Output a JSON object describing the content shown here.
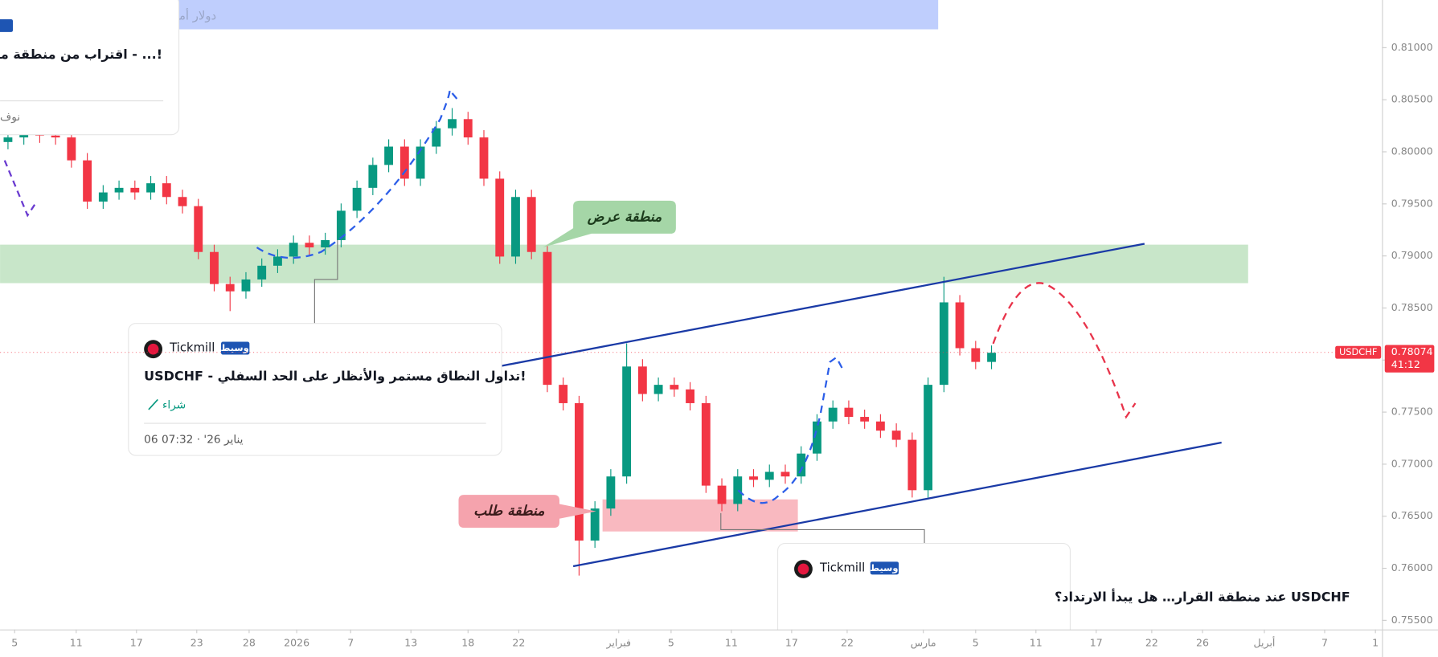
{
  "header": {
    "text": "Tickmill · دولار أمريكي / فرنك سويسري"
  },
  "chart_data": {
    "type": "candlestick",
    "symbol": "USDCHF",
    "up_color": "#089981",
    "down_color": "#f23645",
    "open": [
      0.80094,
      0.80138,
      0.80182,
      0.80156,
      0.80138,
      0.79918,
      0.79522,
      0.7961,
      0.79654,
      0.7961,
      0.79698,
      0.79566,
      0.79478,
      0.79038,
      0.7873,
      0.7866,
      0.78774,
      0.78906,
      0.78994,
      0.79126,
      0.79082,
      0.79152,
      0.79434,
      0.79654,
      0.79874,
      0.8005,
      0.79742,
      0.8005,
      0.80226,
      0.80314,
      0.80138,
      0.79742,
      0.78994,
      0.79566,
      0.79038,
      0.77762,
      0.77586,
      0.76266,
      0.76574,
      0.76882,
      0.77938,
      0.77674,
      0.77762,
      0.77718,
      0.77586,
      0.76794,
      0.76618,
      0.76882,
      0.7685,
      0.76926,
      0.76882,
      0.77102,
      0.7741,
      0.77542,
      0.77454,
      0.7741,
      0.77322,
      0.77234,
      0.7675,
      0.77762,
      0.78554,
      0.78114,
      0.77982
    ],
    "high": [
      0.80208,
      0.80252,
      0.80252,
      0.80226,
      0.80208,
      0.79988,
      0.7968,
      0.79724,
      0.79724,
      0.79768,
      0.79768,
      0.79636,
      0.79548,
      0.79108,
      0.788,
      0.78844,
      0.78976,
      0.79064,
      0.79196,
      0.79196,
      0.79222,
      0.79504,
      0.79724,
      0.79944,
      0.8012,
      0.8012,
      0.8012,
      0.80296,
      0.8042,
      0.80384,
      0.80208,
      0.79812,
      0.79636,
      0.79636,
      0.79108,
      0.77832,
      0.77656,
      0.76644,
      0.76952,
      0.7816,
      0.78008,
      0.77832,
      0.77832,
      0.77788,
      0.77656,
      0.76864,
      0.76952,
      0.76952,
      0.76996,
      0.76996,
      0.77172,
      0.7748,
      0.77612,
      0.77612,
      0.77524,
      0.7748,
      0.77392,
      0.77304,
      0.77832,
      0.788,
      0.78624,
      0.78184,
      0.7814
    ],
    "low": [
      0.80024,
      0.80068,
      0.80086,
      0.80068,
      0.79848,
      0.79452,
      0.79452,
      0.7954,
      0.7954,
      0.7954,
      0.79496,
      0.79408,
      0.78968,
      0.7866,
      0.7847,
      0.7859,
      0.78704,
      0.78836,
      0.78924,
      0.79012,
      0.79012,
      0.79082,
      0.79364,
      0.79584,
      0.79804,
      0.79672,
      0.79672,
      0.7998,
      0.80156,
      0.80068,
      0.79672,
      0.78924,
      0.78924,
      0.78968,
      0.77692,
      0.77516,
      0.7593,
      0.76196,
      0.76504,
      0.76812,
      0.77604,
      0.77604,
      0.77648,
      0.77516,
      0.76724,
      0.76548,
      0.76548,
      0.7678,
      0.7678,
      0.76812,
      0.76812,
      0.77032,
      0.7734,
      0.77384,
      0.7734,
      0.77252,
      0.77164,
      0.7668,
      0.7668,
      0.77692,
      0.78044,
      0.77912,
      0.77912
    ],
    "close": [
      0.80138,
      0.80182,
      0.80156,
      0.80138,
      0.79918,
      0.79522,
      0.7961,
      0.79654,
      0.7961,
      0.79698,
      0.79566,
      0.79478,
      0.79038,
      0.7873,
      0.7866,
      0.78774,
      0.78906,
      0.78994,
      0.79126,
      0.79082,
      0.79152,
      0.79434,
      0.79654,
      0.79874,
      0.8005,
      0.79742,
      0.8005,
      0.80226,
      0.80314,
      0.80138,
      0.79742,
      0.78994,
      0.79566,
      0.79038,
      0.77762,
      0.77586,
      0.76266,
      0.76574,
      0.76882,
      0.77938,
      0.77674,
      0.77762,
      0.77718,
      0.77586,
      0.76794,
      0.76618,
      0.76882,
      0.7685,
      0.76926,
      0.76882,
      0.77102,
      0.7741,
      0.77542,
      0.77454,
      0.7741,
      0.77322,
      0.77234,
      0.7675,
      0.77762,
      0.78554,
      0.78114,
      0.77982,
      0.7807
    ],
    "ylim": [
      0.75412,
      0.81458
    ],
    "yticks": [
      {
        "value": 0.755,
        "label": "0.75500"
      },
      {
        "value": 0.76,
        "label": "0.76000"
      },
      {
        "value": 0.765,
        "label": "0.76500"
      },
      {
        "value": 0.77,
        "label": "0.77000"
      },
      {
        "value": 0.775,
        "label": "0.77500"
      },
      {
        "value": 0.78,
        "label": "0.78000"
      },
      {
        "value": 0.785,
        "label": "0.78500"
      },
      {
        "value": 0.79,
        "label": "0.79000"
      },
      {
        "value": 0.795,
        "label": "0.79500"
      },
      {
        "value": 0.8,
        "label": "0.80000"
      },
      {
        "value": 0.805,
        "label": "0.80500"
      },
      {
        "value": 0.81,
        "label": "0.81000"
      }
    ],
    "xlim": [
      -0.5,
      86.5
    ],
    "xticks": [
      {
        "value": 0.42,
        "label": "5"
      },
      {
        "value": 4.3,
        "label": "11"
      },
      {
        "value": 8.1,
        "label": "17"
      },
      {
        "value": 11.9,
        "label": "23"
      },
      {
        "value": 15.2,
        "label": "28"
      },
      {
        "value": 18.2,
        "label": "2026"
      },
      {
        "value": 21.6,
        "label": "7"
      },
      {
        "value": 25.4,
        "label": "13"
      },
      {
        "value": 29,
        "label": "18"
      },
      {
        "value": 32.2,
        "label": "22"
      },
      {
        "value": 38.5,
        "label": "فبراير"
      },
      {
        "value": 41.8,
        "label": "5"
      },
      {
        "value": 45.6,
        "label": "11"
      },
      {
        "value": 49.4,
        "label": "17"
      },
      {
        "value": 52.9,
        "label": "22"
      },
      {
        "value": 57.7,
        "label": "مارس"
      },
      {
        "value": 61,
        "label": "5"
      },
      {
        "value": 64.8,
        "label": "11"
      },
      {
        "value": 68.6,
        "label": "17"
      },
      {
        "value": 72.1,
        "label": "22"
      },
      {
        "value": 75.3,
        "label": "26"
      },
      {
        "value": 79.2,
        "label": "أبريل"
      },
      {
        "value": 83,
        "label": "7"
      },
      {
        "value": 86.2,
        "label": "1"
      }
    ],
    "last_price": 0.78074,
    "countdown": "41:12"
  },
  "zones": {
    "supply": "منطقة عرض",
    "demand": "منطقة طلب"
  },
  "ideas": [
    {
      "title": "اقتراب من منطقة مقاومة - ...!",
      "footer": "نوف"
    },
    {
      "author": "Tickmill",
      "badge": "وسيط",
      "title": "USDCHF - تداول النطاق مستمر والأنظار على الحد السفلي!",
      "action": "شراء",
      "date": "06 07:32 · '26 يناير"
    },
    {
      "author": "Tickmill",
      "badge": "وسيط",
      "title": "USDCHF عند منطقة القرار… هل يبدأ الارتداد؟"
    }
  ]
}
